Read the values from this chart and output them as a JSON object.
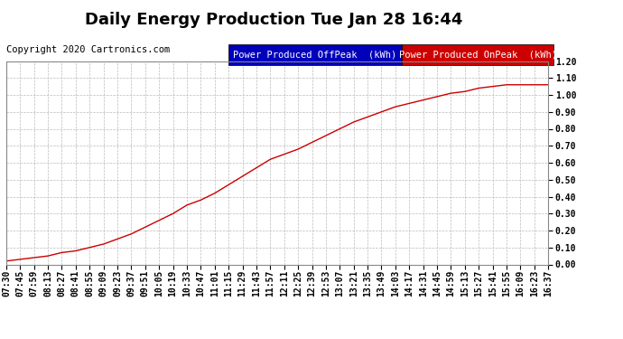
{
  "title": "Daily Energy Production Tue Jan 28 16:44",
  "copyright": "Copyright 2020 Cartronics.com",
  "legend_offpeak_label": "Power Produced OffPeak  (kWh)",
  "legend_onpeak_label": "Power Produced OnPeak  (kWh)",
  "legend_offpeak_color": "#0000bb",
  "legend_onpeak_color": "#cc0000",
  "line_color": "#cc0000",
  "background_color": "#ffffff",
  "plot_bg_color": "#ffffff",
  "grid_color": "#bbbbbb",
  "ylim": [
    0.0,
    1.2
  ],
  "yticks": [
    0.0,
    0.1,
    0.2,
    0.3,
    0.4,
    0.5,
    0.6,
    0.7,
    0.8,
    0.9,
    1.0,
    1.1,
    1.2
  ],
  "xtick_labels": [
    "07:30",
    "07:45",
    "07:59",
    "08:13",
    "08:27",
    "08:41",
    "08:55",
    "09:09",
    "09:23",
    "09:37",
    "09:51",
    "10:05",
    "10:19",
    "10:33",
    "10:47",
    "11:01",
    "11:15",
    "11:29",
    "11:43",
    "11:57",
    "12:11",
    "12:25",
    "12:39",
    "12:53",
    "13:07",
    "13:21",
    "13:35",
    "13:49",
    "14:03",
    "14:17",
    "14:31",
    "14:45",
    "14:59",
    "15:13",
    "15:27",
    "15:41",
    "15:55",
    "16:09",
    "16:23",
    "16:37"
  ],
  "x_values": [
    0,
    1,
    2,
    3,
    4,
    5,
    6,
    7,
    8,
    9,
    10,
    11,
    12,
    13,
    14,
    15,
    16,
    17,
    18,
    19,
    20,
    21,
    22,
    23,
    24,
    25,
    26,
    27,
    28,
    29,
    30,
    31,
    32,
    33,
    34,
    35,
    36,
    37,
    38,
    39
  ],
  "y_values": [
    0.02,
    0.03,
    0.04,
    0.05,
    0.07,
    0.08,
    0.1,
    0.12,
    0.15,
    0.18,
    0.22,
    0.26,
    0.3,
    0.35,
    0.38,
    0.42,
    0.47,
    0.52,
    0.57,
    0.62,
    0.65,
    0.68,
    0.72,
    0.76,
    0.8,
    0.84,
    0.87,
    0.9,
    0.93,
    0.95,
    0.97,
    0.99,
    1.01,
    1.02,
    1.04,
    1.05,
    1.06,
    1.06,
    1.06,
    1.06
  ],
  "title_fontsize": 13,
  "tick_fontsize": 7,
  "copyright_fontsize": 7.5,
  "legend_fontsize": 7.5
}
